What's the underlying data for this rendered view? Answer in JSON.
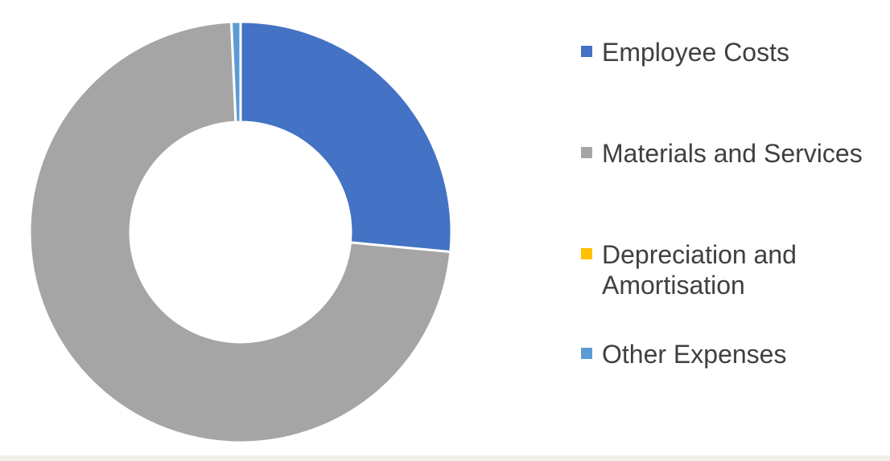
{
  "chart_data": {
    "type": "pie",
    "variant": "donut",
    "title": "",
    "categories": [
      "Employee Costs",
      "Materials and Services",
      "Depreciation and Amortisation",
      "Other Expenses"
    ],
    "values": [
      26.5,
      72.8,
      0.0,
      0.7
    ],
    "colors": [
      "#4472c4",
      "#a5a5a5",
      "#ffc000",
      "#5b9bd5"
    ],
    "legend_position": "right",
    "start_angle_deg": 0,
    "direction": "clockwise"
  },
  "legend": {
    "items": [
      {
        "label": "Employee Costs",
        "color": "#4472c4"
      },
      {
        "label": "Materials and Services",
        "color": "#a5a5a5"
      },
      {
        "label": "Depreciation and Amortisation",
        "color": "#ffc000"
      },
      {
        "label": "Other Expenses",
        "color": "#5b9bd5"
      }
    ]
  }
}
